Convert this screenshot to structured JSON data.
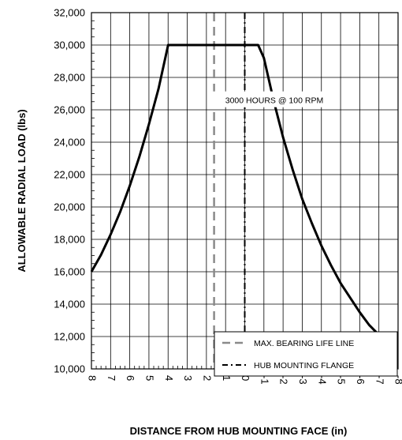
{
  "chart_data": {
    "type": "line",
    "title": "",
    "xlabel": "DISTANCE FROM HUB MOUNTING FACE (in)",
    "ylabel": "ALLOWABLE RADIAL LOAD (lbs)",
    "xlim": [
      8,
      -8
    ],
    "ylim": [
      10000,
      32000
    ],
    "x_ticks": [
      8,
      7,
      6,
      5,
      4,
      3,
      2,
      1,
      0,
      -1,
      -2,
      -3,
      -4,
      -5,
      -6,
      -7,
      -8
    ],
    "x_tick_labels": [
      "8",
      "7",
      "6",
      "5",
      "4",
      "3",
      "2",
      "1",
      "0",
      "-1",
      "-2",
      "-3",
      "-4",
      "-5",
      "-6",
      "-7",
      "-8"
    ],
    "y_ticks": [
      10000,
      12000,
      14000,
      16000,
      18000,
      20000,
      22000,
      24000,
      26000,
      28000,
      30000,
      32000
    ],
    "y_tick_labels": [
      "10,000",
      "12,000",
      "14,000",
      "16,000",
      "18,000",
      "20,000",
      "22,000",
      "24,000",
      "26,000",
      "28,000",
      "30,000",
      "32,000"
    ],
    "grid": true,
    "series": [
      {
        "name": "3000 HOURS @ 100 RPM",
        "x": [
          8,
          7.5,
          7,
          6.5,
          6,
          5.5,
          5,
          4.5,
          4,
          3,
          2,
          1,
          0,
          -0.7,
          -1,
          -1.5,
          -2,
          -2.5,
          -3,
          -3.5,
          -4,
          -4.5,
          -5,
          -5.5,
          -6,
          -6.5,
          -7,
          -7.5,
          -8
        ],
        "y": [
          16000,
          17050,
          18300,
          19700,
          21300,
          23100,
          25100,
          27300,
          30000,
          30000,
          30000,
          30000,
          30000,
          30000,
          29200,
          26600,
          24300,
          22300,
          20500,
          19000,
          17600,
          16400,
          15300,
          14400,
          13500,
          12700,
          12100,
          11600,
          11700
        ]
      }
    ],
    "reference_lines": [
      {
        "name": "MAX. BEARING LIFE LINE",
        "x": 1.6,
        "style": "dashed",
        "color": "#8a8a8a"
      },
      {
        "name": "HUB MOUNTING FLANGE",
        "x": 0,
        "style": "dash-dot",
        "color": "#000000"
      }
    ],
    "legend": {
      "placement": "bottom-right",
      "entries": [
        "MAX. BEARING LIFE LINE",
        "HUB MOUNTING FLANGE"
      ]
    },
    "annotations": [
      {
        "text": "3000 HOURS @ 100 RPM",
        "x": -1.5,
        "y": 26600
      }
    ]
  }
}
